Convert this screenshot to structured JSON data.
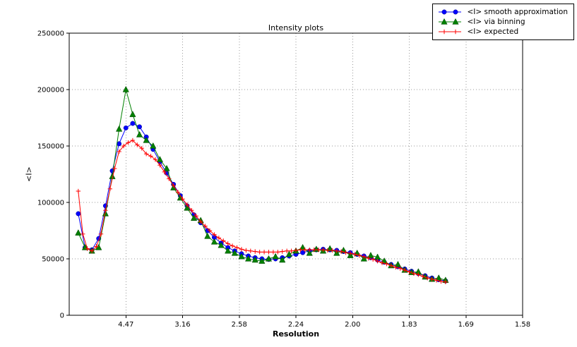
{
  "chart_data": {
    "type": "line",
    "title": "Intensity plots",
    "xlabel": "Resolution",
    "ylabel": "<I>",
    "grid": true,
    "legend_position": "upper right",
    "xlim": [
      0,
      0.4
    ],
    "ylim": [
      0,
      250000
    ],
    "x_ticks": [
      {
        "value": 0.05,
        "label": "4.47"
      },
      {
        "value": 0.1,
        "label": "3.16"
      },
      {
        "value": 0.15,
        "label": "2.58"
      },
      {
        "value": 0.2,
        "label": "2.24"
      },
      {
        "value": 0.25,
        "label": "2.00"
      },
      {
        "value": 0.3,
        "label": "1.83"
      },
      {
        "value": 0.35,
        "label": "1.69"
      },
      {
        "value": 0.4,
        "label": "1.58"
      }
    ],
    "y_ticks": [
      0,
      50000,
      100000,
      150000,
      200000,
      250000
    ],
    "x": [
      0.008,
      0.014,
      0.02,
      0.026,
      0.032,
      0.038,
      0.044,
      0.05,
      0.056,
      0.062,
      0.068,
      0.074,
      0.08,
      0.086,
      0.092,
      0.098,
      0.104,
      0.11,
      0.116,
      0.122,
      0.128,
      0.134,
      0.14,
      0.146,
      0.152,
      0.158,
      0.164,
      0.17,
      0.176,
      0.182,
      0.188,
      0.194,
      0.2,
      0.206,
      0.212,
      0.218,
      0.224,
      0.23,
      0.236,
      0.242,
      0.248,
      0.254,
      0.26,
      0.266,
      0.272,
      0.278,
      0.284,
      0.29,
      0.296,
      0.302,
      0.308,
      0.314,
      0.32,
      0.326,
      0.332
    ],
    "series": [
      {
        "name": "<I> smooth approximation",
        "color": "#0000ff",
        "marker": "circle",
        "values": [
          90000,
          60000,
          58000,
          68000,
          97000,
          128000,
          152000,
          166000,
          170000,
          167000,
          158000,
          147000,
          136000,
          126000,
          116000,
          106000,
          97000,
          89000,
          82000,
          75000,
          69000,
          64000,
          60000,
          57000,
          54500,
          52500,
          51000,
          50000,
          49500,
          50000,
          51000,
          52500,
          54000,
          55500,
          57000,
          58000,
          58500,
          58000,
          57500,
          56500,
          55500,
          54000,
          52500,
          51000,
          49000,
          47000,
          45000,
          43000,
          41000,
          39000,
          37000,
          35000,
          33000,
          31500,
          30500
        ]
      },
      {
        "name": "<I> via binning",
        "color": "#008000",
        "marker": "triangle-up",
        "values": [
          73000,
          60000,
          57000,
          60000,
          90000,
          123000,
          165000,
          200000,
          178000,
          160000,
          155000,
          150000,
          138000,
          130000,
          113000,
          104000,
          95000,
          86000,
          84000,
          70000,
          65000,
          62000,
          57000,
          55000,
          52000,
          50000,
          49000,
          48000,
          50000,
          52000,
          49000,
          54000,
          57000,
          60000,
          55000,
          58500,
          57000,
          59000,
          55000,
          57500,
          53000,
          55000,
          50000,
          53000,
          51500,
          48000,
          44000,
          45000,
          40000,
          38000,
          38500,
          34000,
          32000,
          33000,
          31000
        ]
      },
      {
        "name": "<I> expected",
        "color": "#ff0000",
        "marker": "plus",
        "x": [
          0.008,
          0.012,
          0.016,
          0.02,
          0.024,
          0.028,
          0.032,
          0.036,
          0.04,
          0.044,
          0.048,
          0.052,
          0.056,
          0.06,
          0.064,
          0.068,
          0.072,
          0.076,
          0.08,
          0.084,
          0.088,
          0.092,
          0.096,
          0.1,
          0.104,
          0.108,
          0.112,
          0.116,
          0.12,
          0.124,
          0.128,
          0.132,
          0.136,
          0.14,
          0.144,
          0.148,
          0.152,
          0.156,
          0.16,
          0.164,
          0.168,
          0.172,
          0.176,
          0.18,
          0.184,
          0.188,
          0.192,
          0.196,
          0.2,
          0.204,
          0.208,
          0.212,
          0.216,
          0.22,
          0.224,
          0.228,
          0.232,
          0.236,
          0.24,
          0.244,
          0.248,
          0.252,
          0.256,
          0.26,
          0.264,
          0.268,
          0.272,
          0.276,
          0.28,
          0.284,
          0.288,
          0.292,
          0.296,
          0.3,
          0.304,
          0.308,
          0.312,
          0.316,
          0.32,
          0.324,
          0.328,
          0.332
        ],
        "values": [
          110000,
          72000,
          59000,
          57000,
          61000,
          72000,
          93000,
          112000,
          130000,
          145000,
          150000,
          153000,
          155000,
          151000,
          148000,
          143000,
          141000,
          138000,
          133000,
          127000,
          121000,
          115000,
          109000,
          103000,
          98000,
          93000,
          88000,
          83000,
          79000,
          75000,
          71500,
          68500,
          66000,
          63500,
          61500,
          60000,
          58500,
          57500,
          57000,
          56500,
          56000,
          56000,
          56000,
          56000,
          56000,
          56500,
          57000,
          57000,
          57500,
          58000,
          58000,
          58000,
          58000,
          58000,
          58000,
          57500,
          57500,
          57000,
          56500,
          55500,
          55000,
          54000,
          53000,
          52000,
          50500,
          49500,
          48000,
          46500,
          45500,
          44000,
          42500,
          41500,
          40000,
          38500,
          37000,
          36000,
          34500,
          33000,
          32000,
          31000,
          30000,
          29500
        ]
      }
    ]
  }
}
